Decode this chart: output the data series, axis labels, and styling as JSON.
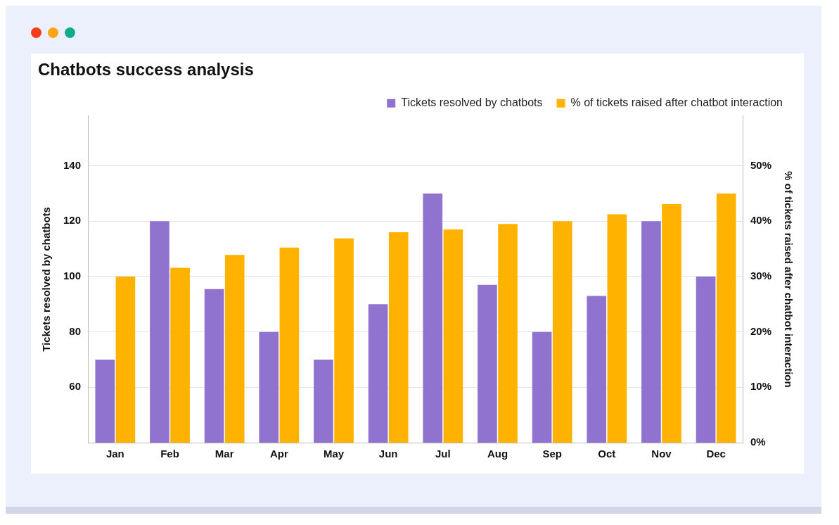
{
  "chart_data": {
    "type": "bar",
    "title": "Chatbots success analysis",
    "categories": [
      "Jan",
      "Feb",
      "Mar",
      "Apr",
      "May",
      "Jun",
      "Jul",
      "Aug",
      "Sep",
      "Oct",
      "Nov",
      "Dec"
    ],
    "series": [
      {
        "name": "Tickets resolved by chatbots",
        "color": "#8f73cf",
        "values": [
          70,
          120,
          95.5,
          80,
          70,
          90,
          130,
          97,
          80,
          93,
          120,
          100
        ]
      },
      {
        "name": "% of tickets raised after chatbot interaction",
        "color": "#ffb300",
        "axis": "y2",
        "values": [
          30,
          31.6,
          33.9,
          35.25,
          36.9,
          38,
          38.5,
          39.5,
          40,
          41.25,
          43.1,
          45
        ]
      }
    ],
    "ylabel": "Tickets resolved by chatbots",
    "y2label": "% of tickets raised after chatbot interaction",
    "ylim": [
      40,
      158
    ],
    "yticks": [
      60,
      80,
      100,
      120,
      140
    ],
    "y2lim": [
      0,
      59
    ],
    "y2ticks": [
      {
        "value": 0,
        "label": "0%"
      },
      {
        "value": 10,
        "label": "10%"
      },
      {
        "value": 20,
        "label": "20%"
      },
      {
        "value": 30,
        "label": "30%"
      },
      {
        "value": 40,
        "label": "40%"
      },
      {
        "value": 50,
        "label": "50%"
      }
    ],
    "grid": "y",
    "legend": "top right"
  }
}
